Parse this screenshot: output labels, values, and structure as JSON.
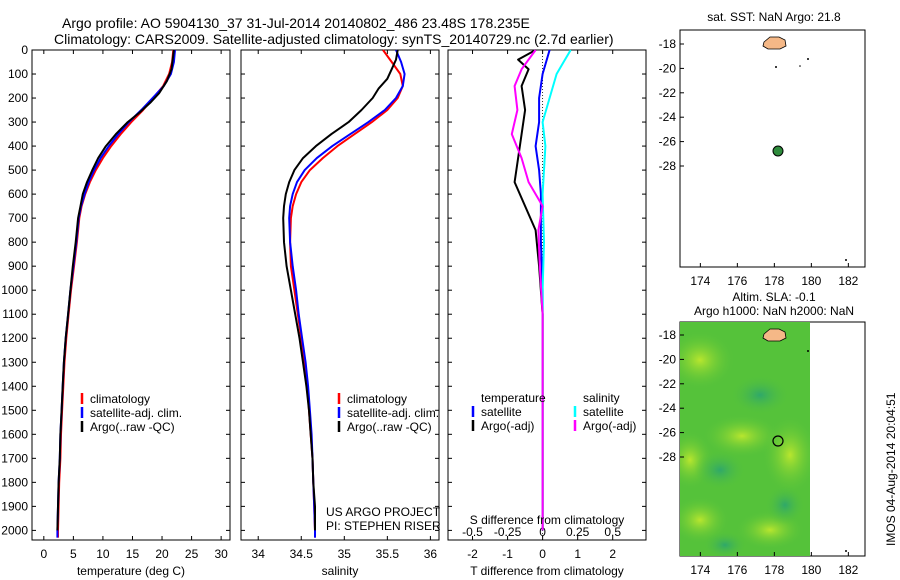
{
  "header": {
    "title_line1": "Argo profile: AO 5904130_37 31-Jul-2014 20140802_486 23.48S 178.235E",
    "title_line2": "Climatology: CARS2009. Satellite-adjusted climatology: synTS_20140729.nc (2.7d earlier)"
  },
  "colors": {
    "climatology": "#ff0000",
    "satellite": "#0000ff",
    "argo": "#000000",
    "salinity_satellite": "#00ffff",
    "salinity_argo": "#ff00ff",
    "land": "#f5b887",
    "float_marker": "#2e8b3c"
  },
  "depth_axis": {
    "ticks": [
      "0",
      "100",
      "200",
      "300",
      "400",
      "500",
      "600",
      "700",
      "800",
      "900",
      "1000",
      "1100",
      "1200",
      "1300",
      "1400",
      "1500",
      "1600",
      "1700",
      "1800",
      "1900",
      "2000"
    ]
  },
  "legend": {
    "climatology": "climatology",
    "satellite_adj": "satellite-adj. clim.",
    "argo": "Argo(..raw -QC)",
    "temperature": "temperature",
    "salinity": "salinity",
    "satellite": "satellite",
    "argo_adj": "Argo(-adj)"
  },
  "credits": {
    "line1": "US ARGO PROJECT",
    "line2": "PI: STEPHEN RISER"
  },
  "map_top": {
    "title": "sat. SST: NaN Argo: 21.8",
    "xticks": [
      "174",
      "176",
      "178",
      "180",
      "182"
    ],
    "yticks": [
      "-18",
      "-20",
      "-22",
      "-24",
      "-26",
      "-28"
    ]
  },
  "map_bottom": {
    "title_line1": "Altim. SLA: -0.1",
    "title_line2": "Argo h1000: NaN h2000: NaN",
    "xticks": [
      "174",
      "176",
      "178",
      "180",
      "182"
    ],
    "yticks": [
      "-18",
      "-20",
      "-22",
      "-24",
      "-26",
      "-28"
    ]
  },
  "side_stamp": "IMOS 04-Aug-2014 20:04:51",
  "chart_data": [
    {
      "type": "line",
      "panel": "temperature",
      "xlabel": "temperature (deg C)",
      "xticks": [
        "0",
        "5",
        "10",
        "15",
        "20",
        "25",
        "30"
      ],
      "xlim": [
        -2,
        31.5
      ],
      "ylim": [
        0,
        2040
      ],
      "series": [
        {
          "name": "climatology",
          "points": [
            [
              21.9,
              0
            ],
            [
              21.7,
              50
            ],
            [
              21.2,
              100
            ],
            [
              20.2,
              150
            ],
            [
              18.5,
              200
            ],
            [
              16.8,
              250
            ],
            [
              14.8,
              300
            ],
            [
              13.0,
              350
            ],
            [
              11.4,
              400
            ],
            [
              10.0,
              450
            ],
            [
              8.8,
              500
            ],
            [
              7.8,
              550
            ],
            [
              7.0,
              600
            ],
            [
              6.4,
              650
            ],
            [
              6.0,
              700
            ],
            [
              5.6,
              800
            ],
            [
              5.1,
              900
            ],
            [
              4.6,
              1000
            ],
            [
              4.2,
              1100
            ],
            [
              3.8,
              1200
            ],
            [
              3.5,
              1300
            ],
            [
              3.3,
              1400
            ],
            [
              3.1,
              1500
            ],
            [
              2.9,
              1600
            ],
            [
              2.8,
              1700
            ],
            [
              2.6,
              1800
            ],
            [
              2.5,
              1900
            ],
            [
              2.4,
              2000
            ],
            [
              2.4,
              2030
            ]
          ]
        },
        {
          "name": "satellite-adj. clim.",
          "points": [
            [
              22.2,
              0
            ],
            [
              22.0,
              50
            ],
            [
              21.5,
              100
            ],
            [
              20.3,
              150
            ],
            [
              18.4,
              200
            ],
            [
              16.5,
              250
            ],
            [
              14.4,
              300
            ],
            [
              12.6,
              350
            ],
            [
              11.0,
              400
            ],
            [
              9.6,
              450
            ],
            [
              8.5,
              500
            ],
            [
              7.6,
              550
            ],
            [
              6.9,
              600
            ],
            [
              6.3,
              650
            ],
            [
              5.9,
              700
            ],
            [
              5.5,
              800
            ],
            [
              5.0,
              900
            ],
            [
              4.5,
              1000
            ],
            [
              4.1,
              1100
            ],
            [
              3.7,
              1200
            ],
            [
              3.4,
              1300
            ],
            [
              3.2,
              1400
            ],
            [
              3.0,
              1500
            ],
            [
              2.8,
              1600
            ],
            [
              2.7,
              1700
            ],
            [
              2.5,
              1800
            ],
            [
              2.4,
              1900
            ],
            [
              2.3,
              2000
            ],
            [
              2.3,
              2030
            ]
          ]
        },
        {
          "name": "Argo(..raw -QC)",
          "points": [
            [
              22.0,
              0
            ],
            [
              21.8,
              40
            ],
            [
              21.6,
              80
            ],
            [
              20.8,
              130
            ],
            [
              19.5,
              180
            ],
            [
              18.0,
              220
            ],
            [
              16.2,
              260
            ],
            [
              14.2,
              300
            ],
            [
              12.2,
              350
            ],
            [
              10.5,
              400
            ],
            [
              9.2,
              450
            ],
            [
              8.2,
              500
            ],
            [
              7.3,
              550
            ],
            [
              6.6,
              600
            ],
            [
              6.2,
              650
            ],
            [
              5.8,
              700
            ],
            [
              5.4,
              800
            ],
            [
              4.9,
              900
            ],
            [
              4.5,
              1000
            ],
            [
              4.1,
              1100
            ],
            [
              3.7,
              1200
            ],
            [
              3.4,
              1300
            ],
            [
              3.2,
              1400
            ],
            [
              3.0,
              1500
            ],
            [
              2.8,
              1600
            ],
            [
              2.7,
              1700
            ],
            [
              2.5,
              1800
            ],
            [
              2.4,
              1900
            ],
            [
              2.3,
              2000
            ]
          ]
        }
      ]
    },
    {
      "type": "line",
      "panel": "salinity",
      "xlabel": "salinity",
      "xticks": [
        "34",
        "34.5",
        "35",
        "35.5",
        "36"
      ],
      "xlim": [
        33.8,
        36.1
      ],
      "ylim": [
        0,
        2040
      ],
      "series": [
        {
          "name": "climatology",
          "points": [
            [
              35.45,
              0
            ],
            [
              35.55,
              50
            ],
            [
              35.65,
              100
            ],
            [
              35.68,
              150
            ],
            [
              35.62,
              200
            ],
            [
              35.5,
              250
            ],
            [
              35.32,
              300
            ],
            [
              35.12,
              350
            ],
            [
              34.92,
              400
            ],
            [
              34.75,
              450
            ],
            [
              34.6,
              500
            ],
            [
              34.5,
              550
            ],
            [
              34.44,
              600
            ],
            [
              34.4,
              650
            ],
            [
              34.38,
              700
            ],
            [
              34.37,
              800
            ],
            [
              34.38,
              900
            ],
            [
              34.42,
              1000
            ],
            [
              34.46,
              1100
            ],
            [
              34.5,
              1200
            ],
            [
              34.54,
              1300
            ],
            [
              34.57,
              1400
            ],
            [
              34.59,
              1500
            ],
            [
              34.61,
              1600
            ],
            [
              34.63,
              1700
            ],
            [
              34.64,
              1800
            ],
            [
              34.65,
              1900
            ],
            [
              34.66,
              2000
            ],
            [
              34.66,
              2030
            ]
          ]
        },
        {
          "name": "satellite-adj. clim.",
          "points": [
            [
              35.6,
              0
            ],
            [
              35.66,
              50
            ],
            [
              35.7,
              100
            ],
            [
              35.68,
              150
            ],
            [
              35.6,
              200
            ],
            [
              35.47,
              250
            ],
            [
              35.28,
              300
            ],
            [
              35.07,
              350
            ],
            [
              34.86,
              400
            ],
            [
              34.68,
              450
            ],
            [
              34.54,
              500
            ],
            [
              34.45,
              550
            ],
            [
              34.4,
              600
            ],
            [
              34.37,
              650
            ],
            [
              34.36,
              700
            ],
            [
              34.37,
              800
            ],
            [
              34.4,
              900
            ],
            [
              34.44,
              1000
            ],
            [
              34.47,
              1100
            ],
            [
              34.51,
              1200
            ],
            [
              34.55,
              1300
            ],
            [
              34.58,
              1400
            ],
            [
              34.6,
              1500
            ],
            [
              34.62,
              1600
            ],
            [
              34.63,
              1700
            ],
            [
              34.64,
              1800
            ],
            [
              34.65,
              1900
            ],
            [
              34.66,
              2000
            ],
            [
              34.66,
              2030
            ]
          ]
        },
        {
          "name": "Argo(..raw -QC)",
          "points": [
            [
              35.62,
              0
            ],
            [
              35.6,
              40
            ],
            [
              35.55,
              80
            ],
            [
              35.5,
              120
            ],
            [
              35.4,
              160
            ],
            [
              35.33,
              200
            ],
            [
              35.2,
              250
            ],
            [
              35.05,
              300
            ],
            [
              34.85,
              350
            ],
            [
              34.67,
              400
            ],
            [
              34.52,
              450
            ],
            [
              34.42,
              500
            ],
            [
              34.36,
              550
            ],
            [
              34.32,
              600
            ],
            [
              34.3,
              650
            ],
            [
              34.29,
              700
            ],
            [
              34.3,
              800
            ],
            [
              34.33,
              900
            ],
            [
              34.38,
              1000
            ],
            [
              34.43,
              1100
            ],
            [
              34.48,
              1200
            ],
            [
              34.52,
              1300
            ],
            [
              34.56,
              1400
            ],
            [
              34.59,
              1500
            ],
            [
              34.61,
              1600
            ],
            [
              34.63,
              1700
            ],
            [
              34.64,
              1800
            ],
            [
              34.66,
              1900
            ],
            [
              34.66,
              2000
            ]
          ]
        }
      ]
    },
    {
      "type": "line",
      "panel": "difference",
      "xlabel_bottom": "T difference from climatology",
      "xlabel_top": "S difference from climatology",
      "xticks_bottom": [
        "-2",
        "-1",
        "0",
        "1",
        "2"
      ],
      "xticks_top": [
        "-0.5",
        "-0.25",
        "0",
        "0.25",
        "0.5"
      ],
      "xlim": [
        -2.7,
        2.95
      ],
      "ylim": [
        0,
        2040
      ],
      "series": [
        {
          "name": "temperature satellite",
          "points": [
            [
              0.2,
              0
            ],
            [
              0.1,
              50
            ],
            [
              0.0,
              100
            ],
            [
              -0.1,
              200
            ],
            [
              -0.1,
              300
            ],
            [
              -0.2,
              400
            ],
            [
              -0.1,
              500
            ],
            [
              -0.05,
              600
            ],
            [
              -0.05,
              800
            ],
            [
              0.0,
              1000
            ],
            [
              0.0,
              1200
            ],
            [
              0.0,
              1500
            ],
            [
              0.0,
              2000
            ]
          ]
        },
        {
          "name": "temperature Argo(-adj)",
          "points": [
            [
              -0.2,
              0
            ],
            [
              -0.7,
              40
            ],
            [
              -0.4,
              80
            ],
            [
              -0.6,
              150
            ],
            [
              -0.5,
              250
            ],
            [
              -0.6,
              350
            ],
            [
              -0.7,
              450
            ],
            [
              -0.8,
              550
            ],
            [
              -0.5,
              650
            ],
            [
              -0.2,
              750
            ],
            [
              -0.1,
              900
            ],
            [
              0.0,
              1100
            ],
            [
              0.0,
              1400
            ],
            [
              0.0,
              2000
            ]
          ]
        },
        {
          "name": "salinity satellite",
          "points": [
            [
              0.2,
              0
            ],
            [
              0.15,
              50
            ],
            [
              0.1,
              100
            ],
            [
              0.05,
              200
            ],
            [
              0.0,
              300
            ],
            [
              0.02,
              400
            ],
            [
              0.0,
              600
            ],
            [
              0.01,
              800
            ],
            [
              0.0,
              1000
            ],
            [
              0.0,
              1500
            ],
            [
              0.0,
              2000
            ]
          ]
        },
        {
          "name": "salinity Argo(-adj)",
          "points": [
            [
              -0.05,
              0
            ],
            [
              -0.15,
              80
            ],
            [
              -0.2,
              150
            ],
            [
              -0.18,
              250
            ],
            [
              -0.22,
              350
            ],
            [
              -0.15,
              450
            ],
            [
              -0.1,
              550
            ],
            [
              0.0,
              650
            ],
            [
              -0.03,
              750
            ],
            [
              -0.02,
              900
            ],
            [
              0.0,
              1100
            ],
            [
              0.0,
              1500
            ],
            [
              0.0,
              2000
            ]
          ]
        }
      ]
    }
  ]
}
